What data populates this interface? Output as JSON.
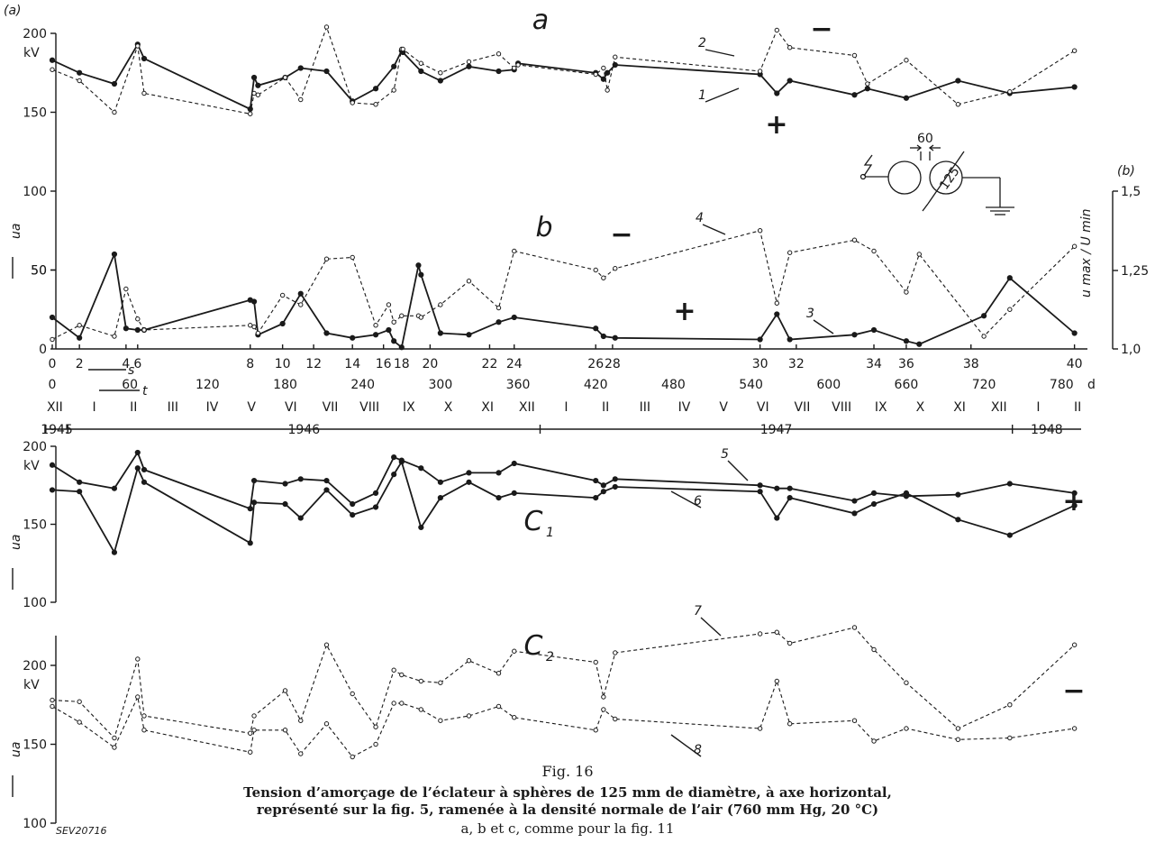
{
  "chart_data": [
    {
      "id": "a",
      "type": "line",
      "panel_label": "a",
      "corner_label": "(a)",
      "ylim": [
        0,
        200
      ],
      "yticks": [
        0,
        50,
        100,
        150,
        200
      ],
      "unit": "kV",
      "ylabel_symbol": "u",
      "ylabel_sub": "a",
      "series": [
        {
          "label": "1",
          "sign": "+",
          "style": "solid",
          "x": [
            0,
            21,
            48,
            66,
            71,
            153,
            156,
            159,
            180,
            192,
            212,
            232,
            250,
            264,
            270,
            271,
            285,
            300,
            322,
            345,
            357,
            360,
            420,
            426,
            429,
            435,
            547,
            560,
            570,
            620,
            630,
            660,
            700,
            740,
            790
          ],
          "y": [
            183,
            175,
            168,
            193,
            184,
            152,
            172,
            167,
            172,
            178,
            176,
            157,
            165,
            179,
            189,
            188,
            176,
            170,
            179,
            176,
            177,
            181,
            175,
            171,
            175,
            180,
            174,
            162,
            170,
            161,
            165,
            159,
            170,
            162,
            166
          ]
        },
        {
          "label": "2",
          "sign": "−",
          "style": "dashed",
          "x": [
            0,
            21,
            48,
            66,
            71,
            153,
            156,
            159,
            180,
            192,
            212,
            232,
            250,
            264,
            270,
            271,
            285,
            300,
            322,
            345,
            357,
            360,
            420,
            426,
            429,
            435,
            547,
            560,
            570,
            620,
            630,
            660,
            700,
            740,
            790
          ],
          "y": [
            177,
            170,
            150,
            192,
            162,
            149,
            162,
            161,
            172,
            158,
            204,
            156,
            155,
            164,
            190,
            190,
            181,
            175,
            182,
            187,
            178,
            180,
            174,
            178,
            164,
            185,
            176,
            202,
            191,
            186,
            168,
            183,
            155,
            163,
            189
          ]
        }
      ]
    },
    {
      "id": "b",
      "type": "line",
      "panel_label": "b",
      "corner_label": "(b)",
      "ylim": [
        0,
        100
      ],
      "yticks": [
        0,
        50,
        100
      ],
      "right_ylim": [
        1.0,
        1.5
      ],
      "right_yticks": [
        "1,0",
        "1,25",
        "1,5"
      ],
      "right_ylabel_num": "u max",
      "right_ylabel_den": "U min",
      "series": [
        {
          "label": "3",
          "sign": "+",
          "style": "solid",
          "x": [
            0,
            21,
            48,
            57,
            66,
            71,
            153,
            156,
            159,
            178,
            192,
            212,
            232,
            250,
            260,
            264,
            270,
            283,
            285,
            300,
            322,
            345,
            357,
            420,
            426,
            435,
            547,
            560,
            570,
            620,
            635,
            660,
            670,
            720,
            740,
            790
          ],
          "y": [
            20,
            7,
            60,
            13,
            12,
            12,
            31,
            30,
            9,
            16,
            35,
            10,
            7,
            9,
            12,
            5,
            1,
            53,
            47,
            10,
            9,
            17,
            20,
            13,
            8,
            7,
            6,
            22,
            6,
            9,
            12,
            5,
            3,
            21,
            45,
            10
          ]
        },
        {
          "label": "4",
          "sign": "−",
          "style": "dashed",
          "x": [
            0,
            21,
            48,
            57,
            66,
            71,
            153,
            156,
            159,
            178,
            192,
            212,
            232,
            250,
            260,
            264,
            270,
            283,
            285,
            300,
            322,
            345,
            357,
            420,
            426,
            435,
            547,
            560,
            570,
            620,
            635,
            660,
            670,
            720,
            740,
            790
          ],
          "y": [
            6,
            15,
            8,
            38,
            19,
            12,
            15,
            14,
            10,
            34,
            28,
            57,
            58,
            15,
            28,
            17,
            21,
            21,
            20,
            28,
            43,
            26,
            62,
            50,
            45,
            51,
            75,
            29,
            61,
            69,
            62,
            36,
            60,
            8,
            25,
            65
          ]
        }
      ]
    },
    {
      "id": "c1",
      "type": "line",
      "panel_label": "c1",
      "panel_label_main": "C",
      "panel_label_sub": "1",
      "sign": "+",
      "ylim": [
        100,
        200
      ],
      "yticks": [
        100,
        150,
        200
      ],
      "unit": "kV",
      "series": [
        {
          "label": "5",
          "style": "solid",
          "x": [
            0,
            21,
            48,
            66,
            71,
            153,
            156,
            180,
            192,
            212,
            232,
            250,
            264,
            270,
            285,
            300,
            322,
            345,
            357,
            420,
            426,
            435,
            547,
            560,
            570,
            620,
            635,
            660,
            700,
            740,
            790
          ],
          "y": [
            188,
            177,
            173,
            196,
            185,
            160,
            178,
            176,
            179,
            178,
            163,
            170,
            193,
            191,
            186,
            177,
            183,
            183,
            189,
            178,
            175,
            179,
            175,
            173,
            173,
            165,
            170,
            168,
            169,
            176,
            170
          ]
        },
        {
          "label": "6",
          "style": "solid",
          "x": [
            0,
            21,
            48,
            66,
            71,
            153,
            156,
            180,
            192,
            212,
            232,
            250,
            264,
            270,
            285,
            300,
            322,
            345,
            357,
            420,
            426,
            435,
            547,
            560,
            570,
            620,
            635,
            660,
            700,
            740,
            790
          ],
          "y": [
            172,
            171,
            132,
            186,
            177,
            138,
            164,
            163,
            154,
            172,
            156,
            161,
            182,
            190,
            148,
            167,
            177,
            167,
            170,
            167,
            171,
            174,
            171,
            154,
            167,
            157,
            163,
            170,
            153,
            143,
            162
          ]
        }
      ]
    },
    {
      "id": "c2",
      "type": "line",
      "panel_label": "c2",
      "panel_label_main": "C",
      "panel_label_sub": "2",
      "sign": "−",
      "ylim": [
        100,
        200
      ],
      "yticks": [
        100,
        150,
        200
      ],
      "unit": "kV",
      "series": [
        {
          "label": "7",
          "style": "dashed",
          "x": [
            0,
            21,
            48,
            66,
            71,
            153,
            156,
            180,
            192,
            212,
            232,
            250,
            264,
            270,
            285,
            300,
            322,
            345,
            357,
            420,
            426,
            435,
            547,
            560,
            570,
            620,
            635,
            660,
            700,
            740,
            790
          ],
          "y": [
            178,
            177,
            154,
            204,
            168,
            157,
            168,
            184,
            165,
            213,
            182,
            161,
            197,
            194,
            190,
            189,
            203,
            195,
            209,
            202,
            180,
            208,
            220,
            221,
            214,
            224,
            210,
            189,
            160,
            175,
            213
          ]
        },
        {
          "label": "8",
          "style": "dashed",
          "x": [
            0,
            21,
            48,
            66,
            71,
            153,
            156,
            180,
            192,
            212,
            232,
            250,
            264,
            270,
            285,
            300,
            322,
            345,
            357,
            420,
            426,
            435,
            547,
            560,
            570,
            620,
            635,
            660,
            700,
            740,
            790
          ],
          "y": [
            174,
            164,
            148,
            180,
            159,
            145,
            159,
            159,
            144,
            163,
            142,
            150,
            176,
            176,
            172,
            165,
            168,
            174,
            167,
            159,
            172,
            166,
            160,
            190,
            163,
            165,
            152,
            160,
            153,
            154,
            160
          ]
        }
      ]
    }
  ],
  "shared_x_axis": {
    "xlim": [
      0,
      800
    ],
    "unit": "d",
    "t_ticks": [
      0,
      60,
      120,
      180,
      240,
      300,
      360,
      420,
      480,
      540,
      600,
      660,
      720,
      780
    ],
    "s_ticks": [
      {
        "label": "0",
        "x": 0
      },
      {
        "label": "2",
        "x": 21
      },
      {
        "label": "4",
        "x": 57
      },
      {
        "label": "6",
        "x": 66
      },
      {
        "label": "8",
        "x": 153
      },
      {
        "label": "10",
        "x": 178
      },
      {
        "label": "12",
        "x": 202
      },
      {
        "label": "14",
        "x": 232
      },
      {
        "label": "16",
        "x": 256
      },
      {
        "label": "18",
        "x": 270
      },
      {
        "label": "20",
        "x": 292
      },
      {
        "label": "22",
        "x": 338
      },
      {
        "label": "24",
        "x": 357
      },
      {
        "label": "26",
        "x": 420
      },
      {
        "label": "28",
        "x": 433
      },
      {
        "label": "30",
        "x": 547
      },
      {
        "label": "32",
        "x": 575
      },
      {
        "label": "34",
        "x": 635
      },
      {
        "label": "36",
        "x": 660
      },
      {
        "label": "38",
        "x": 710
      },
      {
        "label": "40",
        "x": 790
      }
    ],
    "s_arrow_label": "s",
    "t_arrow_label": "t",
    "months": [
      "XII",
      "I",
      "II",
      "III",
      "IV",
      "V",
      "VI",
      "VII",
      "VIII",
      "IX",
      "X",
      "XI",
      "XII",
      "I",
      "II",
      "III",
      "IV",
      "V",
      "VI",
      "VII",
      "VIII",
      "IX",
      "X",
      "XI",
      "XII",
      "I",
      "II"
    ],
    "years": [
      {
        "label": "1945",
        "from": -5,
        "to": 12
      },
      {
        "label": "1946",
        "from": 12,
        "to": 377
      },
      {
        "label": "1947",
        "from": 377,
        "to": 742
      },
      {
        "label": "1948",
        "from": 742,
        "to": 800
      }
    ]
  },
  "inset": {
    "gap_label": "60",
    "sphere_label": "125"
  },
  "caption": {
    "fig": "Fig. 16",
    "line1": "Tension d’amorçage de l’éclateur à sphères de 125 mm de diamètre, à axe horizontal,",
    "line2": "représenté sur la fig. 5, ramenée à la densité normale de l’air (760 mm Hg, 20 °C)",
    "line3": "a, b et c, comme pour la fig. 11"
  },
  "plate_id": "SEV20716",
  "colors": {
    "ink": "#1a1a1a",
    "paper": "#ffffff"
  }
}
